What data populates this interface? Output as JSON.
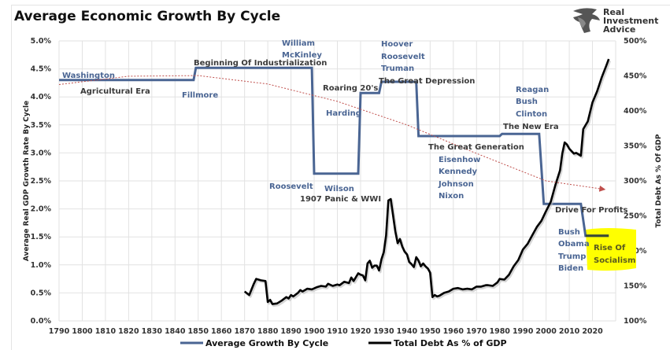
{
  "chart_data": {
    "type": "line",
    "title": "Average Economic Growth By Cycle",
    "ylabel": "Average Real GDP Growth Rate By Cycle",
    "y2label": "Total Debt As % Of GDP",
    "xlabel": "",
    "xlim": [
      1790,
      2030
    ],
    "ylim": [
      0,
      5
    ],
    "y2lim": [
      100,
      500
    ],
    "grid": true,
    "legend_position": "bottom",
    "x_ticks": [
      "1790",
      "1800",
      "1810",
      "1820",
      "1830",
      "1840",
      "1850",
      "1860",
      "1870",
      "1880",
      "1890",
      "1900",
      "1910",
      "1920",
      "1930",
      "1940",
      "1950",
      "1960",
      "1970",
      "1980",
      "1990",
      "2000",
      "2010",
      "2020"
    ],
    "y_ticks": [
      "0.0%",
      "0.5%",
      "1.0%",
      "1.5%",
      "2.0%",
      "2.5%",
      "3.0%",
      "3.5%",
      "4.0%",
      "4.5%",
      "5.0%"
    ],
    "y2_ticks": [
      "100%",
      "150%",
      "200%",
      "250%",
      "300%",
      "350%",
      "400%",
      "450%",
      "500%"
    ],
    "legend": [
      {
        "name": "Average Growth By Cycle",
        "color": "#4a6593"
      },
      {
        "name": "Total Debt As % of GDP",
        "color": "#000000"
      }
    ],
    "series": [
      {
        "name": "Average Growth By Cycle",
        "axis": "left",
        "color": "#4a6593",
        "points": [
          [
            1790,
            4.3
          ],
          [
            1848,
            4.3
          ],
          [
            1849,
            4.52
          ],
          [
            1899,
            4.52
          ],
          [
            1900,
            2.63
          ],
          [
            1919,
            2.63
          ],
          [
            1920,
            4.07
          ],
          [
            1928,
            4.07
          ],
          [
            1929,
            4.27
          ],
          [
            1944,
            4.27
          ],
          [
            1945,
            3.3
          ],
          [
            1980,
            3.3
          ],
          [
            1981,
            3.34
          ],
          [
            1997,
            3.34
          ],
          [
            1999,
            2.09
          ],
          [
            2015,
            2.09
          ],
          [
            2017,
            1.52
          ],
          [
            2027,
            1.52
          ]
        ]
      },
      {
        "name": "Total Debt As % of GDP",
        "axis": "right",
        "color": "#000000",
        "points": [
          [
            1870,
            142
          ],
          [
            1872,
            137
          ],
          [
            1874,
            153
          ],
          [
            1875,
            160
          ],
          [
            1877,
            158
          ],
          [
            1879,
            157
          ],
          [
            1880,
            127
          ],
          [
            1881,
            130
          ],
          [
            1882,
            124
          ],
          [
            1884,
            125
          ],
          [
            1886,
            129
          ],
          [
            1888,
            134
          ],
          [
            1889,
            132
          ],
          [
            1890,
            137
          ],
          [
            1891,
            135
          ],
          [
            1893,
            140
          ],
          [
            1894,
            144
          ],
          [
            1895,
            142
          ],
          [
            1897,
            146
          ],
          [
            1899,
            145
          ],
          [
            1901,
            148
          ],
          [
            1903,
            150
          ],
          [
            1905,
            149
          ],
          [
            1906,
            153
          ],
          [
            1908,
            150
          ],
          [
            1910,
            152
          ],
          [
            1911,
            151
          ],
          [
            1913,
            156
          ],
          [
            1915,
            154
          ],
          [
            1916,
            162
          ],
          [
            1917,
            157
          ],
          [
            1919,
            168
          ],
          [
            1920,
            166
          ],
          [
            1921,
            165
          ],
          [
            1922,
            158
          ],
          [
            1923,
            182
          ],
          [
            1924,
            186
          ],
          [
            1925,
            176
          ],
          [
            1926,
            179
          ],
          [
            1927,
            179
          ],
          [
            1928,
            172
          ],
          [
            1929,
            188
          ],
          [
            1930,
            198
          ],
          [
            1931,
            222
          ],
          [
            1932,
            272
          ],
          [
            1933,
            274
          ],
          [
            1934,
            251
          ],
          [
            1935,
            228
          ],
          [
            1936,
            211
          ],
          [
            1937,
            217
          ],
          [
            1938,
            206
          ],
          [
            1939,
            199
          ],
          [
            1940,
            195
          ],
          [
            1941,
            184
          ],
          [
            1942,
            181
          ],
          [
            1943,
            177
          ],
          [
            1944,
            191
          ],
          [
            1945,
            186
          ],
          [
            1946,
            178
          ],
          [
            1947,
            182
          ],
          [
            1948,
            178
          ],
          [
            1949,
            175
          ],
          [
            1950,
            169
          ],
          [
            1951,
            134
          ],
          [
            1952,
            137
          ],
          [
            1953,
            135
          ],
          [
            1954,
            136
          ],
          [
            1956,
            140
          ],
          [
            1958,
            142
          ],
          [
            1960,
            146
          ],
          [
            1962,
            147
          ],
          [
            1964,
            145
          ],
          [
            1966,
            146
          ],
          [
            1968,
            145
          ],
          [
            1970,
            149
          ],
          [
            1972,
            149
          ],
          [
            1974,
            151
          ],
          [
            1975,
            151
          ],
          [
            1977,
            150
          ],
          [
            1979,
            155
          ],
          [
            1980,
            160
          ],
          [
            1982,
            159
          ],
          [
            1984,
            166
          ],
          [
            1986,
            178
          ],
          [
            1988,
            187
          ],
          [
            1990,
            202
          ],
          [
            1992,
            210
          ],
          [
            1994,
            222
          ],
          [
            1996,
            234
          ],
          [
            1998,
            243
          ],
          [
            2000,
            257
          ],
          [
            2002,
            270
          ],
          [
            2004,
            294
          ],
          [
            2006,
            315
          ],
          [
            2007,
            339
          ],
          [
            2008,
            355
          ],
          [
            2009,
            352
          ],
          [
            2010,
            346
          ],
          [
            2012,
            339
          ],
          [
            2013,
            340
          ],
          [
            2015,
            336
          ],
          [
            2016,
            374
          ],
          [
            2018,
            385
          ],
          [
            2020,
            412
          ],
          [
            2022,
            428
          ],
          [
            2024,
            448
          ],
          [
            2026,
            465
          ],
          [
            2027,
            474
          ]
        ]
      },
      {
        "name": "Trend",
        "axis": "left",
        "color": "#c0504d",
        "style": "dotted-arrow",
        "points": [
          [
            1790,
            4.22
          ],
          [
            1820,
            4.37
          ],
          [
            1850,
            4.38
          ],
          [
            1880,
            4.23
          ],
          [
            1910,
            3.92
          ],
          [
            1940,
            3.5
          ],
          [
            1970,
            2.99
          ],
          [
            2000,
            2.5
          ],
          [
            2025,
            2.35
          ]
        ]
      }
    ],
    "annotations": [
      {
        "text": "Washington",
        "style": "blue"
      },
      {
        "text": "Agricultural Era",
        "style": "dark"
      },
      {
        "text": "Fillmore",
        "style": "blue"
      },
      {
        "text": "Beginning Of Industrialization",
        "style": "dark"
      },
      {
        "text": "William",
        "style": "blue"
      },
      {
        "text": "McKinley",
        "style": "blue"
      },
      {
        "text": "Roosevelt",
        "style": "blue"
      },
      {
        "text": "1907 Panic & WWI",
        "style": "dark"
      },
      {
        "text": "Wilson",
        "style": "blue"
      },
      {
        "text": "Roaring 20's",
        "style": "dark"
      },
      {
        "text": "Harding",
        "style": "blue"
      },
      {
        "text": "Hoover",
        "style": "blue"
      },
      {
        "text": "Roosevelt",
        "style": "blue"
      },
      {
        "text": "Truman",
        "style": "blue"
      },
      {
        "text": "The Great Depression",
        "style": "dark"
      },
      {
        "text": "The Great Generation",
        "style": "dark"
      },
      {
        "text": "Eisenhow",
        "style": "blue"
      },
      {
        "text": "Kennedy",
        "style": "blue"
      },
      {
        "text": "Johnson",
        "style": "blue"
      },
      {
        "text": "Nixon",
        "style": "blue"
      },
      {
        "text": "Reagan",
        "style": "blue"
      },
      {
        "text": "Bush",
        "style": "blue"
      },
      {
        "text": "Clinton",
        "style": "blue"
      },
      {
        "text": "The New Era",
        "style": "dark"
      },
      {
        "text": "Drive For Profits",
        "style": "dark"
      },
      {
        "text": "Bush",
        "style": "blue"
      },
      {
        "text": "Obama",
        "style": "blue"
      },
      {
        "text": "Trump",
        "style": "blue"
      },
      {
        "text": "Biden",
        "style": "blue"
      },
      {
        "text": "Rise Of",
        "style": "highlight"
      },
      {
        "text": "Socialism",
        "style": "highlight"
      }
    ],
    "highlight_color": "#ffff00"
  },
  "logo": {
    "lines": [
      "Real",
      "Investment",
      "Advice"
    ],
    "icon": "eagle-head-icon"
  }
}
